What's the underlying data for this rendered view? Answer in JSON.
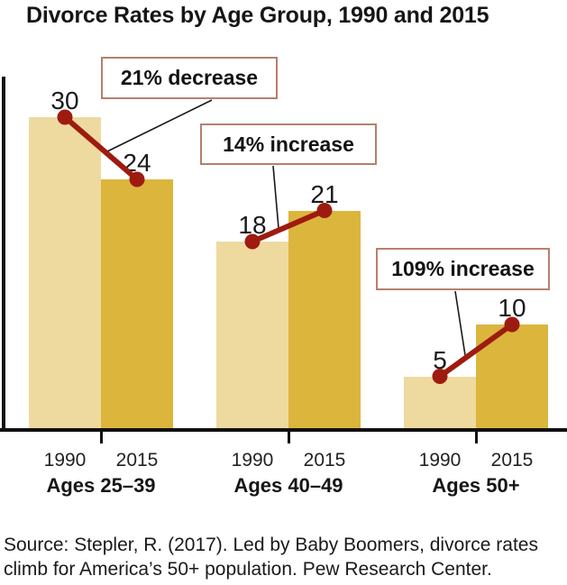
{
  "title": "Divorce Rates by Age Group, 1990 and 2015",
  "source": {
    "line1": "Source: Stepler, R. (2017). Led by Baby Boomers, divorce rates",
    "line2": "climb for America’s 50+ population. Pew Research Center."
  },
  "chart_data": {
    "type": "bar",
    "title": "Divorce Rates by Age Group, 1990 and 2015",
    "categories": [
      "Ages 25–39",
      "Ages 40–49",
      "Ages 50+"
    ],
    "series": [
      {
        "name": "1990",
        "values": [
          30,
          18,
          5
        ],
        "color": "#eeda9f"
      },
      {
        "name": "2015",
        "values": [
          24,
          21,
          10
        ],
        "color": "#dcb53d"
      }
    ],
    "annotations": [
      {
        "group": "Ages 25–39",
        "label": "21% decrease"
      },
      {
        "group": "Ages 40–49",
        "label": "14% increase"
      },
      {
        "group": "Ages 50+",
        "label": "109% increase"
      }
    ],
    "value_labels": [
      30,
      24,
      18,
      21,
      5,
      10
    ],
    "trend_line_color": "#9e1b10",
    "annotation_border_color": "#b5806e",
    "connector_color": "#1a1a1a",
    "axis_color": "#111111",
    "ylim": [
      0,
      34
    ],
    "grid": false,
    "legend": "none",
    "xlabel": "",
    "ylabel": ""
  }
}
